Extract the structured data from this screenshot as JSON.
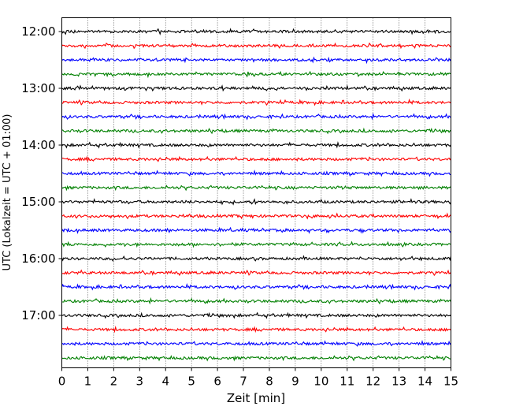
{
  "chart_data": {
    "type": "line",
    "title": "",
    "xlabel": "Zeit  [min]",
    "ylabel": "UTC (Lokalzeit = UTC + 01:00)",
    "xlim": [
      0,
      15
    ],
    "x_ticks": [
      "0",
      "1",
      "2",
      "3",
      "4",
      "5",
      "6",
      "7",
      "8",
      "9",
      "10",
      "11",
      "12",
      "13",
      "14",
      "15"
    ],
    "y_tick_labels": [
      "12:00",
      "13:00",
      "14:00",
      "15:00",
      "16:00",
      "17:00"
    ],
    "y_tick_rows": [
      0,
      4,
      8,
      12,
      16,
      20
    ],
    "vertical_grid": "dotted",
    "rows_per_hour": 4,
    "row_minutes": 15,
    "color_cycle": [
      "#000000",
      "#ff0000",
      "#0000ff",
      "#008000"
    ],
    "series": [
      {
        "start": "12:00",
        "color": "#000000"
      },
      {
        "start": "12:15",
        "color": "#ff0000"
      },
      {
        "start": "12:30",
        "color": "#0000ff"
      },
      {
        "start": "12:45",
        "color": "#008000"
      },
      {
        "start": "13:00",
        "color": "#000000"
      },
      {
        "start": "13:15",
        "color": "#ff0000"
      },
      {
        "start": "13:30",
        "color": "#0000ff"
      },
      {
        "start": "13:45",
        "color": "#008000"
      },
      {
        "start": "14:00",
        "color": "#000000"
      },
      {
        "start": "14:15",
        "color": "#ff0000"
      },
      {
        "start": "14:30",
        "color": "#0000ff"
      },
      {
        "start": "14:45",
        "color": "#008000"
      },
      {
        "start": "15:00",
        "color": "#000000"
      },
      {
        "start": "15:15",
        "color": "#ff0000"
      },
      {
        "start": "15:30",
        "color": "#0000ff"
      },
      {
        "start": "15:45",
        "color": "#008000"
      },
      {
        "start": "16:00",
        "color": "#000000"
      },
      {
        "start": "16:15",
        "color": "#ff0000"
      },
      {
        "start": "16:30",
        "color": "#0000ff"
      },
      {
        "start": "16:45",
        "color": "#008000"
      },
      {
        "start": "17:00",
        "color": "#000000"
      },
      {
        "start": "17:15",
        "color": "#ff0000"
      },
      {
        "start": "17:30",
        "color": "#0000ff"
      },
      {
        "start": "17:45",
        "color": "#008000"
      }
    ]
  }
}
